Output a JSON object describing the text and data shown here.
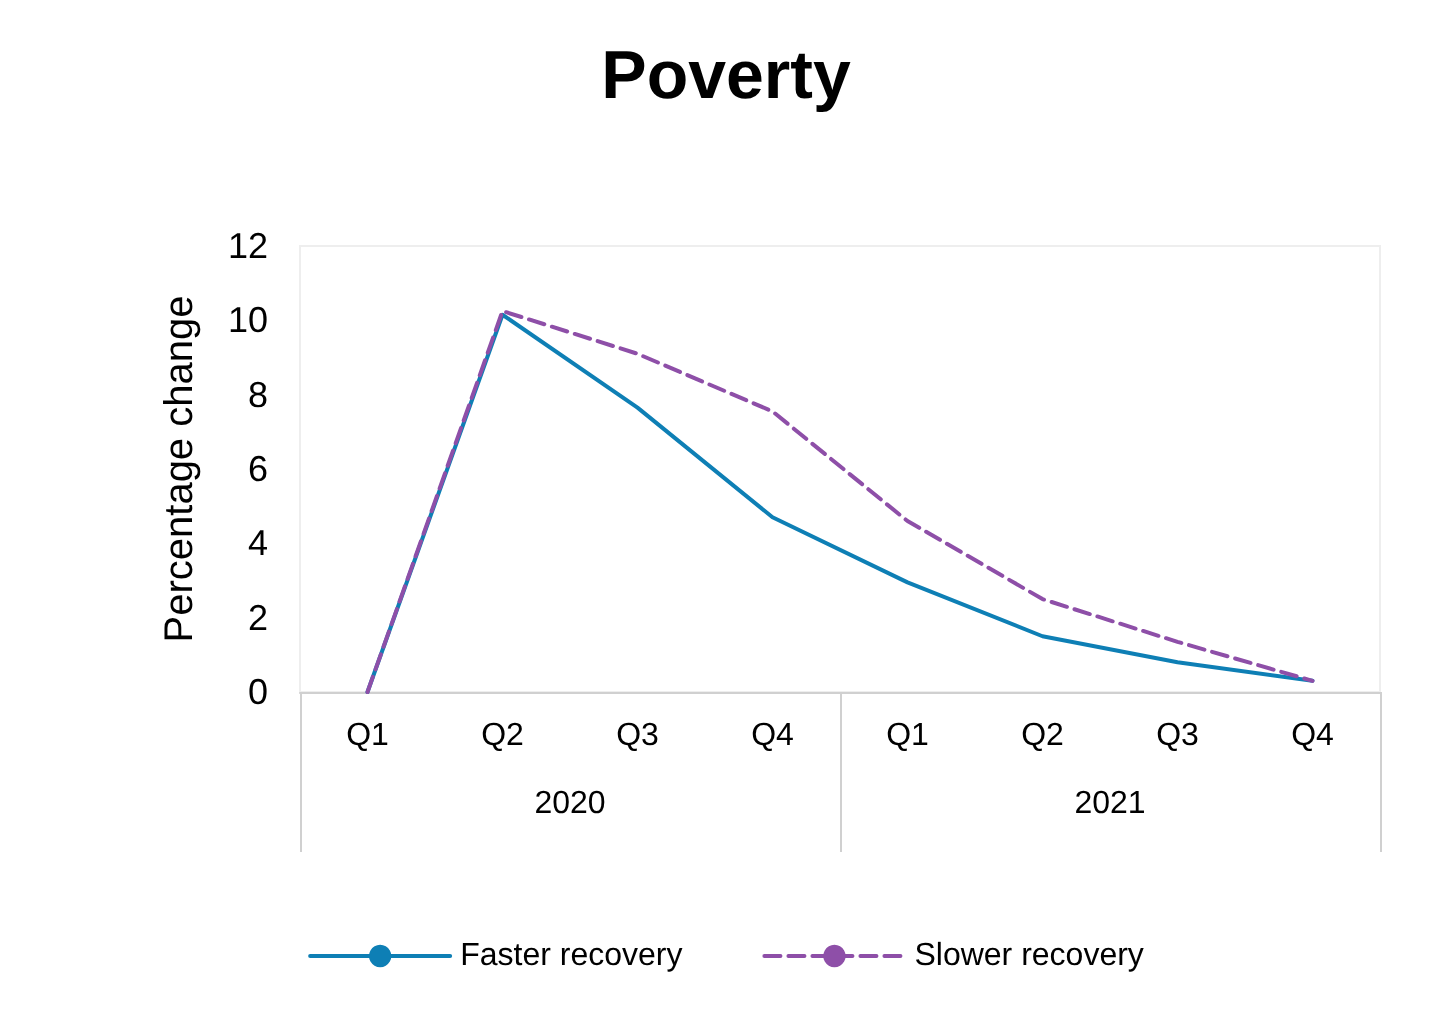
{
  "chart_data": {
    "type": "line",
    "title": "Poverty",
    "ylabel": "Percentage change",
    "categories": [
      "Q1",
      "Q2",
      "Q3",
      "Q4",
      "Q1",
      "Q2",
      "Q3",
      "Q4"
    ],
    "annotations": [
      "2020",
      "2021"
    ],
    "ylim": [
      0,
      12
    ],
    "yticks": [
      0,
      2,
      4,
      6,
      8,
      10,
      12
    ],
    "grid": false,
    "legend": "bottom",
    "marker": "none",
    "series": [
      {
        "name": "Faster recovery",
        "color": "#0e7fb5",
        "line_style": "solid",
        "values": [
          0,
          10.15,
          7.65,
          4.7,
          2.95,
          1.5,
          0.8,
          0.3
        ]
      },
      {
        "name": "Slower recovery",
        "color": "#8e4fa8",
        "line_style": "dashed",
        "values": [
          0,
          10.25,
          9.1,
          7.55,
          4.6,
          2.5,
          1.35,
          0.3
        ]
      }
    ]
  }
}
